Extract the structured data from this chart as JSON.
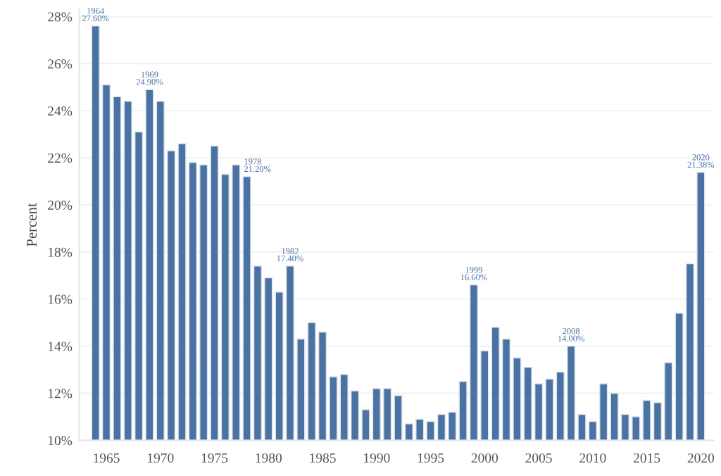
{
  "chart_data": {
    "type": "bar",
    "ylabel": "Percent",
    "color": "#4a72a2",
    "x": [
      1964,
      1965,
      1966,
      1967,
      1968,
      1969,
      1970,
      1971,
      1972,
      1973,
      1974,
      1975,
      1976,
      1977,
      1978,
      1979,
      1980,
      1981,
      1982,
      1983,
      1984,
      1985,
      1986,
      1987,
      1988,
      1989,
      1990,
      1991,
      1992,
      1993,
      1994,
      1995,
      1996,
      1997,
      1998,
      1999,
      2000,
      2001,
      2002,
      2003,
      2004,
      2005,
      2006,
      2007,
      2008,
      2009,
      2010,
      2011,
      2012,
      2013,
      2014,
      2015,
      2016,
      2017,
      2018,
      2019,
      2020
    ],
    "values": [
      27.6,
      25.1,
      24.6,
      24.4,
      23.1,
      24.9,
      24.4,
      22.3,
      22.6,
      21.8,
      21.7,
      22.5,
      21.3,
      21.7,
      21.2,
      17.4,
      16.9,
      16.3,
      17.4,
      14.3,
      15.0,
      14.6,
      12.7,
      12.8,
      12.1,
      11.3,
      12.2,
      12.2,
      11.9,
      10.7,
      10.9,
      10.8,
      11.1,
      11.2,
      12.5,
      16.6,
      13.8,
      14.8,
      14.3,
      13.5,
      13.1,
      12.4,
      12.6,
      12.9,
      14.0,
      11.1,
      10.8,
      12.4,
      12.0,
      11.1,
      11.0,
      11.7,
      11.6,
      13.3,
      15.4,
      17.5,
      21.38
    ],
    "value_labels": [
      "1964\n27.60%",
      null,
      null,
      null,
      null,
      "1969\n24.90%",
      null,
      null,
      null,
      null,
      null,
      null,
      null,
      null,
      "1978\n21.20%",
      null,
      null,
      null,
      "1982\n17.40%",
      null,
      null,
      null,
      null,
      null,
      null,
      null,
      null,
      null,
      null,
      null,
      null,
      null,
      null,
      null,
      null,
      "1999\n16.60%",
      null,
      null,
      null,
      null,
      null,
      null,
      null,
      null,
      "2008\n14.00%",
      null,
      null,
      null,
      null,
      null,
      null,
      null,
      null,
      null,
      null,
      null,
      "2020\n21.38%"
    ],
    "xlim": [
      1962.5,
      2021.2
    ],
    "xticks": [
      1965,
      1970,
      1975,
      1980,
      1985,
      1990,
      1995,
      2000,
      2005,
      2010,
      2015,
      2020
    ],
    "ylim": [
      10,
      28.3
    ],
    "yticks": [
      {
        "value": 10,
        "label": "10%"
      },
      {
        "value": 12,
        "label": "12%"
      },
      {
        "value": 14,
        "label": "14%"
      },
      {
        "value": 16,
        "label": "16%"
      },
      {
        "value": 18,
        "label": "18%"
      },
      {
        "value": 20,
        "label": "20%"
      },
      {
        "value": 22,
        "label": "22%"
      },
      {
        "value": 24,
        "label": "24%"
      },
      {
        "value": 26,
        "label": "26%"
      },
      {
        "value": 28,
        "label": "28%"
      }
    ],
    "grid": "y"
  }
}
